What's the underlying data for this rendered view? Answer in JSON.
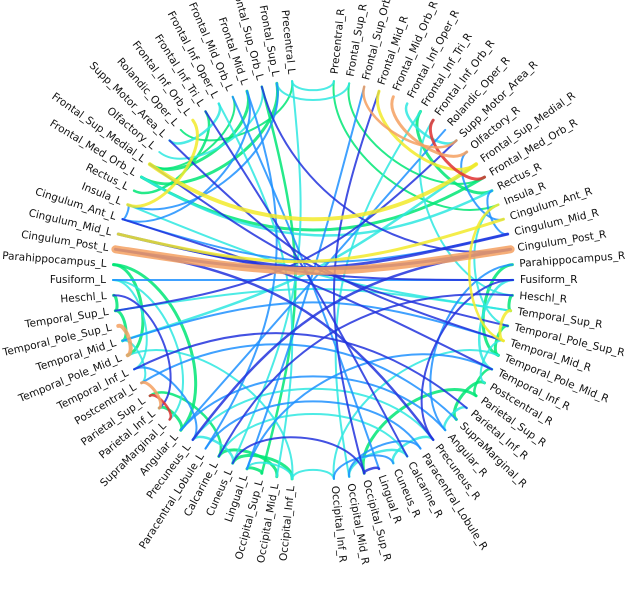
{
  "diagram": {
    "type": "connectogram",
    "left_hemisphere": [
      "Precentral_L",
      "Frontal_Sup_L",
      "Frontal_Sup_Orb_L",
      "Frontal_Mid_L",
      "Frontal_Mid_Orb_L",
      "Frontal_Inf_Oper_L",
      "Frontal_Inf_Tri_L",
      "Frontal_Inf_Orb_L",
      "Rolandic_Oper_L",
      "Supp_Motor_Area_L",
      "Olfactory_L",
      "Frontal_Sup_Medial_L",
      "Frontal_Med_Orb_L",
      "Rectus_L",
      "Insula_L",
      "Cingulum_Ant_L",
      "Cingulum_Mid_L",
      "Cingulum_Post_L",
      "Parahippocampus_L",
      "Fusiform_L",
      "Heschl_L",
      "Temporal_Sup_L",
      "Temporal_Pole_Sup_L",
      "Temporal_Mid_L",
      "Temporal_Pole_Mid_L",
      "Temporal_Inf_L",
      "Postcentral_L",
      "Parietal_Sup_L",
      "Parietal_Inf_L",
      "SupraMarginal_L",
      "Angular_L",
      "Precuneus_L",
      "Paracentral_Lobule_L",
      "Calcarine_L",
      "Cuneus_L",
      "Lingual_L",
      "Occipital_Sup_L",
      "Occipital_Mid_L",
      "Occipital_Inf_L"
    ],
    "right_hemisphere": [
      "Precentral_R",
      "Frontal_Sup_R",
      "Frontal_Sup_Orb_R",
      "Frontal_Mid_R",
      "Frontal_Mid_Orb_R",
      "Frontal_Inf_Oper_R",
      "Frontal_Inf_Tri_R",
      "Frontal_Inf_Orb_R",
      "Rolandic_Oper_R",
      "Supp_Motor_Area_R",
      "Olfactory_R",
      "Frontal_Sup_Medial_R",
      "Frontal_Med_Orb_R",
      "Rectus_R",
      "Insula_R",
      "Cingulum_Ant_R",
      "Cingulum_Mid_R",
      "Cingulum_Post_R",
      "Parahippocampus_R",
      "Fusiform_R",
      "Heschl_R",
      "Temporal_Sup_R",
      "Temporal_Pole_Sup_R",
      "Temporal_Mid_R",
      "Temporal_Pole_Mid_R",
      "Temporal_Inf_R",
      "Postcentral_R",
      "Parietal_Sup_R",
      "Parietal_Inf_R",
      "SupraMarginal_R",
      "Angular_R",
      "Precuneus_R",
      "Paracentral_Lobule_R",
      "Calcarine_R",
      "Cuneus_R",
      "Lingual_R",
      "Occipital_Sup_R",
      "Occipital_Mid_R",
      "Occipital_Inf_R"
    ],
    "colors": {
      "weak": "#00e676",
      "light": "#2ee8e0",
      "medium": "#1e90ff",
      "strong": "#2233dd",
      "yellow": "#f2ea2a",
      "orange": "#f4a060",
      "red": "#e03030"
    },
    "edges": [
      {
        "from": "Cingulum_Post_L",
        "to": "Cingulum_Post_R",
        "level": "orange",
        "weight": 8
      },
      {
        "from": "Cingulum_Post_L",
        "to": "Cingulum_Mid_R",
        "level": "strong",
        "weight": 3
      },
      {
        "from": "Cingulum_Mid_L",
        "to": "Cingulum_Post_R",
        "level": "strong",
        "weight": 3
      },
      {
        "from": "Cingulum_Ant_L",
        "to": "Cingulum_Mid_R",
        "level": "medium",
        "weight": 2
      },
      {
        "from": "Cingulum_Post_L",
        "to": "Precuneus_R",
        "level": "strong",
        "weight": 2.5
      },
      {
        "from": "Cingulum_Post_R",
        "to": "Precuneus_L",
        "level": "strong",
        "weight": 2.5
      },
      {
        "from": "Cingulum_Mid_L",
        "to": "Cingulum_Ant_R",
        "level": "yellow",
        "weight": 3
      },
      {
        "from": "Cingulum_Mid_L",
        "to": "Fusiform_R",
        "level": "strong",
        "weight": 2
      },
      {
        "from": "Frontal_Sup_Medial_L",
        "to": "Frontal_Sup_Medial_R",
        "level": "yellow",
        "weight": 4
      },
      {
        "from": "Frontal_Med_Orb_L",
        "to": "Frontal_Med_Orb_R",
        "level": "weak",
        "weight": 3
      },
      {
        "from": "Frontal_Med_Orb_L",
        "to": "Rectus_R",
        "level": "light",
        "weight": 2.5
      },
      {
        "from": "Frontal_Inf_Orb_R",
        "to": "Frontal_Med_Orb_R",
        "level": "red",
        "weight": 3
      },
      {
        "from": "Frontal_Mid_Orb_R",
        "to": "Olfactory_R",
        "level": "orange",
        "weight": 3
      },
      {
        "from": "Frontal_Sup_Orb_R",
        "to": "Supp_Motor_Area_R",
        "level": "orange",
        "weight": 2.5
      },
      {
        "from": "Frontal_Mid_R",
        "to": "Frontal_Sup_Medial_R",
        "level": "yellow",
        "weight": 3
      },
      {
        "from": "Frontal_Sup_R",
        "to": "Frontal_Med_Orb_R",
        "level": "weak",
        "weight": 2
      },
      {
        "from": "Frontal_Inf_Tri_R",
        "to": "Rectus_R",
        "level": "weak",
        "weight": 3
      },
      {
        "from": "Precentral_R",
        "to": "Insula_R",
        "level": "weak",
        "weight": 2
      },
      {
        "from": "Frontal_Inf_Oper_R",
        "to": "Supp_Motor_Area_R",
        "level": "light",
        "weight": 2.5
      },
      {
        "from": "Olfactory_R",
        "to": "Cingulum_Ant_R",
        "level": "medium",
        "weight": 2
      },
      {
        "from": "Rectus_R",
        "to": "Cingulum_Mid_R",
        "level": "medium",
        "weight": 2
      },
      {
        "from": "Insula_R",
        "to": "Temporal_Pole_Sup_R",
        "level": "light",
        "weight": 2
      },
      {
        "from": "Frontal_Mid_L",
        "to": "Frontal_Sup_Medial_L",
        "level": "weak",
        "weight": 3
      },
      {
        "from": "Frontal_Sup_L",
        "to": "Frontal_Med_Orb_L",
        "level": "weak",
        "weight": 3
      },
      {
        "from": "Frontal_Inf_Tri_L",
        "to": "Rectus_L",
        "level": "weak",
        "weight": 2.5
      },
      {
        "from": "Frontal_Inf_Orb_L",
        "to": "Insula_L",
        "level": "yellow",
        "weight": 3
      },
      {
        "from": "Frontal_Inf_Oper_L",
        "to": "Supp_Motor_Area_L",
        "level": "light",
        "weight": 2.5
      },
      {
        "from": "Frontal_Sup_Orb_L",
        "to": "Olfactory_L",
        "level": "light",
        "weight": 2
      },
      {
        "from": "Precentral_L",
        "to": "Rolandic_Oper_L",
        "level": "weak",
        "weight": 2
      },
      {
        "from": "Frontal_Mid_Orb_L",
        "to": "Frontal_Sup_Medial_L",
        "level": "weak",
        "weight": 2
      },
      {
        "from": "Frontal_Sup_L",
        "to": "Insula_L",
        "level": "medium",
        "weight": 2
      },
      {
        "from": "Frontal_Mid_L",
        "to": "Cingulum_Ant_L",
        "level": "medium",
        "weight": 2
      },
      {
        "from": "Frontal_Sup_L",
        "to": "Frontal_Sup_R",
        "level": "light",
        "weight": 2
      },
      {
        "from": "Precentral_L",
        "to": "Precentral_R",
        "level": "light",
        "weight": 2
      },
      {
        "from": "Frontal_Sup_Orb_L",
        "to": "Cingulum_Post_R",
        "level": "strong",
        "weight": 2
      },
      {
        "from": "Frontal_Mid_L",
        "to": "Paracentral_Lobule_L",
        "level": "medium",
        "weight": 2
      },
      {
        "from": "Frontal_Inf_Oper_L",
        "to": "Occipital_Mid_L",
        "level": "light",
        "weight": 2
      },
      {
        "from": "Frontal_Sup_Orb_L",
        "to": "Occipital_Sup_L",
        "level": "weak",
        "weight": 2.5
      },
      {
        "from": "Precentral_L",
        "to": "Cuneus_L",
        "level": "light",
        "weight": 2
      },
      {
        "from": "Frontal_Inf_Tri_L",
        "to": "Calcarine_R",
        "level": "strong",
        "weight": 2
      },
      {
        "from": "Frontal_Mid_Orb_L",
        "to": "Lingual_R",
        "level": "medium",
        "weight": 2
      },
      {
        "from": "Supp_Motor_Area_L",
        "to": "Temporal_Mid_R",
        "level": "strong",
        "weight": 2
      },
      {
        "from": "Frontal_Sup_Medial_L",
        "to": "Temporal_Pole_Sup_R",
        "level": "strong",
        "weight": 2
      },
      {
        "from": "Frontal_Sup_Orb_R",
        "to": "Lingual_L",
        "level": "medium",
        "weight": 2
      },
      {
        "from": "Frontal_Inf_Tri_R",
        "to": "Occipital_Mid_R",
        "level": "light",
        "weight": 2
      },
      {
        "from": "Frontal_Mid_R",
        "to": "Occipital_Sup_R",
        "level": "strong",
        "weight": 2
      },
      {
        "from": "Supp_Motor_Area_R",
        "to": "Temporal_Sup_L",
        "level": "strong",
        "weight": 2
      },
      {
        "from": "Frontal_Sup_Medial_R",
        "to": "Temporal_Mid_L",
        "level": "light",
        "weight": 2.5
      },
      {
        "from": "Rolandic_Oper_R",
        "to": "Angular_L",
        "level": "medium",
        "weight": 2
      },
      {
        "from": "Frontal_Inf_Orb_R",
        "to": "Heschl_R",
        "level": "light",
        "weight": 2
      },
      {
        "from": "Insula_R",
        "to": "Temporal_Mid_R",
        "level": "yellow",
        "weight": 2.5
      },
      {
        "from": "Insula_L",
        "to": "Cingulum_Ant_L",
        "level": "medium",
        "weight": 2
      },
      {
        "from": "Insula_L",
        "to": "Temporal_Sup_R",
        "level": "light",
        "weight": 2
      },
      {
        "from": "Cingulum_Ant_L",
        "to": "Temporal_Inf_R",
        "level": "strong",
        "weight": 2
      },
      {
        "from": "Parahippocampus_L",
        "to": "Temporal_Pole_Mid_L",
        "level": "weak",
        "weight": 3
      },
      {
        "from": "Fusiform_L",
        "to": "Temporal_Inf_L",
        "level": "light",
        "weight": 2
      },
      {
        "from": "Heschl_L",
        "to": "Temporal_Sup_L",
        "level": "weak",
        "weight": 3
      },
      {
        "from": "Temporal_Sup_L",
        "to": "Temporal_Mid_L",
        "level": "weak",
        "weight": 3
      },
      {
        "from": "Temporal_Pole_Sup_L",
        "to": "Temporal_Pole_Mid_L",
        "level": "orange",
        "weight": 4
      },
      {
        "from": "Temporal_Mid_L",
        "to": "Postcentral_L",
        "level": "light",
        "weight": 2
      },
      {
        "from": "Parahippocampus_L",
        "to": "Angular_L",
        "level": "weak",
        "weight": 3
      },
      {
        "from": "Fusiform_L",
        "to": "Supramarginal_L",
        "level": "light",
        "weight": 2
      },
      {
        "from": "Heschl_L",
        "to": "Parietal_Inf_L",
        "level": "strong",
        "weight": 2
      },
      {
        "from": "Temporal_Inf_L",
        "to": "Precuneus_L",
        "level": "medium",
        "weight": 2
      },
      {
        "from": "Temporal_Pole_Mid_L",
        "to": "Occipital_Inf_L",
        "level": "light",
        "weight": 2
      },
      {
        "from": "Postcentral_L",
        "to": "Parietal_Inf_L",
        "level": "orange",
        "weight": 3
      },
      {
        "from": "Parietal_Sup_L",
        "to": "SupraMarginal_L",
        "level": "red",
        "weight": 2.5
      },
      {
        "from": "Parietal_Inf_L",
        "to": "Angular_L",
        "level": "weak",
        "weight": 3
      },
      {
        "from": "Parietal_Sup_L",
        "to": "Calcarine_L",
        "level": "weak",
        "weight": 2.5
      },
      {
        "from": "Precuneus_L",
        "to": "Cuneus_L",
        "level": "light",
        "weight": 2.5
      },
      {
        "from": "Calcarine_L",
        "to": "Occipital_Mid_L",
        "level": "weak",
        "weight": 3
      },
      {
        "from": "Cuneus_L",
        "to": "Occipital_Inf_L",
        "level": "weak",
        "weight": 3
      },
      {
        "from": "Lingual_L",
        "to": "Occipital_Sup_L",
        "level": "weak",
        "weight": 3
      },
      {
        "from": "Lingual_L",
        "to": "Occipital_Inf_L",
        "level": "light",
        "weight": 2
      },
      {
        "from": "Fusiform_L",
        "to": "Fusiform_R",
        "level": "medium",
        "weight": 2
      },
      {
        "from": "Temporal_Sup_L",
        "to": "Temporal_Sup_R",
        "level": "light",
        "weight": 2
      },
      {
        "from": "Angular_L",
        "to": "Angular_R",
        "level": "medium",
        "weight": 2
      },
      {
        "from": "Precuneus_L",
        "to": "Precuneus_R",
        "level": "light",
        "weight": 2
      },
      {
        "from": "Paracentral_Lobule_L",
        "to": "Paracentral_Lobule_R",
        "level": "medium",
        "weight": 2
      },
      {
        "from": "Calcarine_L",
        "to": "Calcarine_R",
        "level": "light",
        "weight": 2
      },
      {
        "from": "Temporal_Mid_L",
        "to": "Temporal_Mid_R",
        "level": "medium",
        "weight": 2
      },
      {
        "from": "Cuneus_L",
        "to": "Occipital_Sup_R",
        "level": "strong",
        "weight": 2
      },
      {
        "from": "Parahippocampus_R",
        "to": "Temporal_Pole_Mid_R",
        "level": "weak",
        "weight": 3
      },
      {
        "from": "Fusiform_R",
        "to": "Temporal_Inf_R",
        "level": "light",
        "weight": 2.5
      },
      {
        "from": "Heschl_R",
        "to": "Temporal_Sup_R",
        "level": "weak",
        "weight": 3
      },
      {
        "from": "Temporal_Sup_R",
        "to": "Temporal_Mid_R",
        "level": "yellow",
        "weight": 3
      },
      {
        "from": "Temporal_Pole_Sup_R",
        "to": "Temporal_Pole_Mid_R",
        "level": "weak",
        "weight": 3
      },
      {
        "from": "Temporal_Mid_R",
        "to": "Postcentral_R",
        "level": "light",
        "weight": 2
      },
      {
        "from": "Temporal_Inf_R",
        "to": "Parietal_Sup_R",
        "level": "weak",
        "weight": 2.5
      },
      {
        "from": "Parahippocampus_R",
        "to": "Angular_R",
        "level": "medium",
        "weight": 2
      },
      {
        "from": "Fusiform_R",
        "to": "Precuneus_R",
        "level": "strong",
        "weight": 2
      },
      {
        "from": "Postcentral_R",
        "to": "SupraMarginal_R",
        "level": "weak",
        "weight": 3
      },
      {
        "from": "Parietal_Inf_R",
        "to": "Angular_R",
        "level": "light",
        "weight": 2.5
      },
      {
        "from": "Parietal_Sup_R",
        "to": "Occipital_Sup_R",
        "level": "weak",
        "weight": 3
      },
      {
        "from": "Precuneus_R",
        "to": "Cuneus_R",
        "level": "light",
        "weight": 2.5
      },
      {
        "from": "Calcarine_R",
        "to": "Occipital_Mid_R",
        "level": "light",
        "weight": 2.5
      },
      {
        "from": "Cuneus_R",
        "to": "Occipital_Inf_R",
        "level": "medium",
        "weight": 2
      },
      {
        "from": "Lingual_R",
        "to": "Occipital_Sup_R",
        "level": "strong",
        "weight": 2.5
      },
      {
        "from": "Paracentral_Lobule_R",
        "to": "Occipital_Mid_R",
        "level": "medium",
        "weight": 2
      },
      {
        "from": "Temporal_Pole_Mid_R",
        "to": "Occipital_Inf_R",
        "level": "light",
        "weight": 2
      },
      {
        "from": "Heschl_R",
        "to": "Calcarine_L",
        "level": "strong",
        "weight": 2
      },
      {
        "from": "Temporal_Inf_R",
        "to": "Lingual_L",
        "level": "medium",
        "weight": 2
      },
      {
        "from": "Parietal_Inf_R",
        "to": "Temporal_Inf_L",
        "level": "strong",
        "weight": 2
      },
      {
        "from": "SupraMarginal_R",
        "to": "Postcentral_L",
        "level": "medium",
        "weight": 2
      },
      {
        "from": "Occipital_Inf_L",
        "to": "Occipital_Inf_R",
        "level": "light",
        "weight": 2
      }
    ]
  }
}
